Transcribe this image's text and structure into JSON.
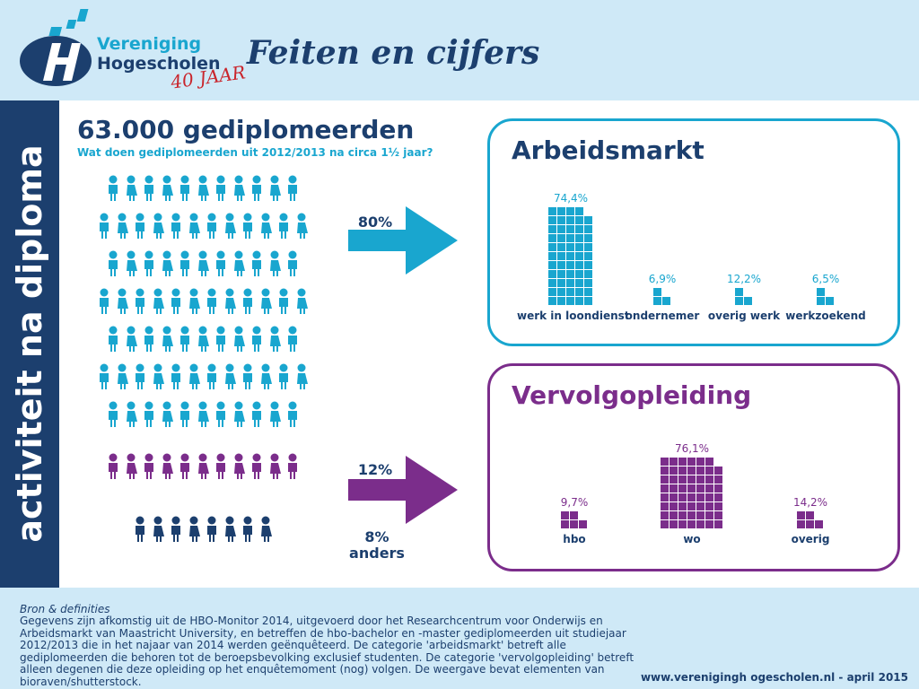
{
  "header": {
    "logo_line1": "Vereniging",
    "logo_line2": "Hogescholen",
    "logo_jaar": "40 JAAR",
    "title": "Feiten en cijfers"
  },
  "sidebar": {
    "text": "activiteit na diploma"
  },
  "main": {
    "title": "63.000 gediplomeerden",
    "subtitle": "Wat doen gediplomeerden uit 2012/2013 na circa 1½ jaar?",
    "arrow_top_pct": "80%",
    "arrow_bottom_pct": "12%",
    "other_pct": "8%",
    "other_label": "anders"
  },
  "colors": {
    "blue": "#19a6cf",
    "purple": "#7b2d8b",
    "navy": "#1c3f6e"
  },
  "chart_data": [
    {
      "type": "bar",
      "title": "Arbeidsmarkt",
      "categories": [
        "werk in loondienst",
        "ondernemer",
        "overig werk",
        "werkzoekend"
      ],
      "values": [
        74.4,
        6.9,
        12.2,
        6.5
      ],
      "value_labels": [
        "74,4%",
        "6,9%",
        "12,2%",
        "6,5%"
      ],
      "unit": "%",
      "grid": false
    },
    {
      "type": "bar",
      "title": "Vervolgopleiding",
      "categories": [
        "hbo",
        "wo",
        "overig"
      ],
      "values": [
        9.7,
        76.1,
        14.2
      ],
      "value_labels": [
        "9,7%",
        "76,1%",
        "14,2%"
      ],
      "unit": "%",
      "grid": false
    }
  ],
  "footer": {
    "source_title": "Bron & definities",
    "source_text": "Gegevens zijn afkomstig uit de HBO-Monitor 2014, uitgevoerd door het Researchcentrum voor Onderwijs en Arbeidsmarkt van Maastricht University, en betreffen de hbo-bachelor en -master gediplomeerden uit studiejaar 2012/2013 die in het najaar van 2014 werden geënquêteerd. De categorie 'arbeidsmarkt' betreft alle gediplomeerden die behoren tot de beroepsbevolking exclusief studenten. De categorie 'vervolgopleiding' betreft alleen degenen die deze opleiding op het enquêtemoment (nog) volgen. De weergave bevat elementen van bioraven/shutterstock.",
    "url": "www.verenigingh ogescholen.nl - april 2015"
  }
}
